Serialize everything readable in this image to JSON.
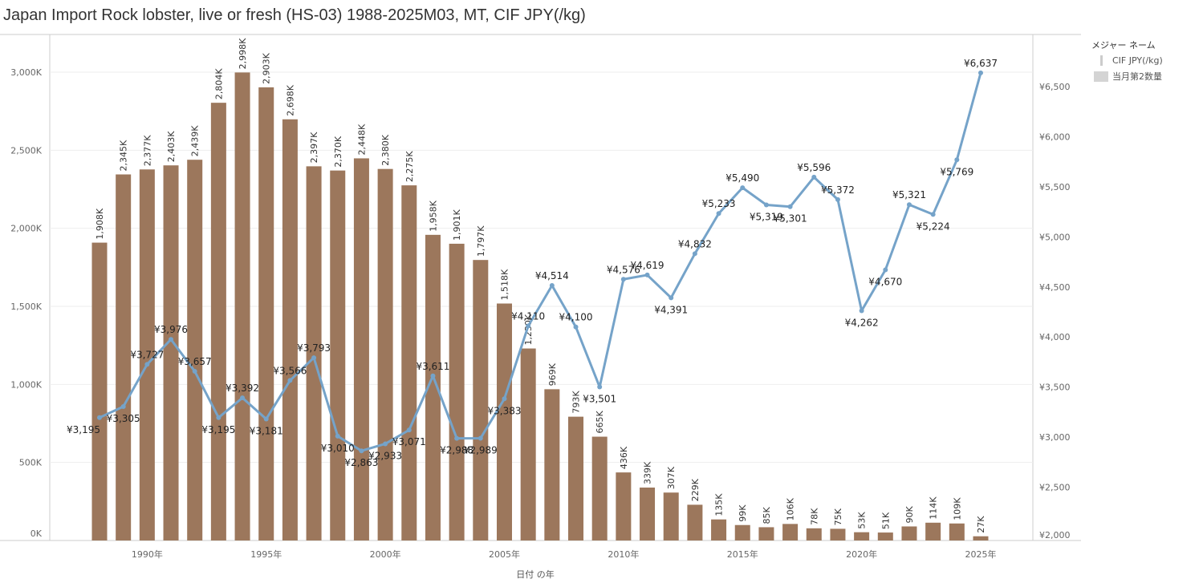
{
  "title": "Japan Import Rock lobster, live or fresh (HS-03) 1988-2025M03, MT, CIF JPY(/kg)",
  "legend": {
    "title": "メジャー ネーム",
    "items": [
      "CIF JPY(/kg)",
      "当月第2数量"
    ]
  },
  "colors": {
    "bar": "#9c775c",
    "line": "#75a3c9",
    "grid": "#eeeeee",
    "axis_text": "#666666"
  },
  "chart_data": {
    "type": "bar+line",
    "title": "Japan Import Rock lobster, live or fresh (HS-03) 1988-2025M03, MT, CIF JPY(/kg)",
    "xlabel": "日付 の年",
    "x": [
      1988,
      1989,
      1990,
      1991,
      1992,
      1993,
      1994,
      1995,
      1996,
      1997,
      1998,
      1999,
      2000,
      2001,
      2002,
      2003,
      2004,
      2005,
      2006,
      2007,
      2008,
      2009,
      2010,
      2011,
      2012,
      2013,
      2014,
      2015,
      2016,
      2017,
      2018,
      2019,
      2020,
      2021,
      2022,
      2023,
      2024,
      2025
    ],
    "x_ticks": [
      "1990年",
      "1995年",
      "2000年",
      "2005年",
      "2010年",
      "2015年",
      "2020年",
      "2025年"
    ],
    "x_tick_years": [
      1990,
      1995,
      2000,
      2005,
      2010,
      2015,
      2020,
      2025
    ],
    "series": [
      {
        "name": "当月第2数量",
        "type": "bar",
        "axis": "left",
        "values": [
          1908,
          2345,
          2377,
          2403,
          2439,
          2804,
          2998,
          2903,
          2698,
          2397,
          2370,
          2448,
          2380,
          2275,
          1958,
          1901,
          1797,
          1518,
          1230,
          969,
          793,
          665,
          436,
          339,
          307,
          229,
          135,
          99,
          85,
          106,
          78,
          75,
          53,
          51,
          90,
          114,
          109,
          27
        ],
        "labels": [
          "1,908K",
          "2,345K",
          "2,377K",
          "2,403K",
          "2,439K",
          "2,804K",
          "2,998K",
          "2,903K",
          "2,698K",
          "2,397K",
          "2,370K",
          "2,448K",
          "2,380K",
          "2,275K",
          "1,958K",
          "1,901K",
          "1,797K",
          "1,518K",
          "1,230K",
          "969K",
          "793K",
          "665K",
          "436K",
          "339K",
          "307K",
          "229K",
          "135K",
          "99K",
          "85K",
          "106K",
          "78K",
          "75K",
          "53K",
          "51K",
          "90K",
          "114K",
          "109K",
          "27K"
        ]
      },
      {
        "name": "CIF JPY(/kg)",
        "type": "line",
        "axis": "right",
        "values": [
          3195,
          3305,
          3727,
          3976,
          3657,
          3195,
          3392,
          3181,
          3566,
          3793,
          3010,
          2863,
          2933,
          3071,
          3611,
          2988,
          2989,
          3383,
          4110,
          4514,
          4100,
          3501,
          4576,
          4619,
          4391,
          4832,
          5233,
          5490,
          5319,
          5301,
          5596,
          5372,
          4262,
          4670,
          5321,
          5224,
          5769,
          6637
        ],
        "labels": [
          "¥3,195",
          "¥3,305",
          "¥3,727",
          "¥3,976",
          "¥3,657",
          "¥3,195",
          "¥3,392",
          "¥3,181",
          "¥3,566",
          "¥3,793",
          "¥3,010",
          "¥2,863",
          "¥2,933",
          "¥3,071",
          "¥3,611",
          "¥2,988",
          "¥2,989",
          "¥3,383",
          "¥4,110",
          "¥4,514",
          "¥4,100",
          "¥3,501",
          "¥4,576",
          "¥4,619",
          "¥4,391",
          "¥4,832",
          "¥5,233",
          "¥5,490",
          "¥5,319",
          "¥5,301",
          "¥5,596",
          "¥5,372",
          "¥4,262",
          "¥4,670",
          "¥5,321",
          "¥5,224",
          "¥5,769",
          "¥6,637"
        ]
      }
    ],
    "y_left": {
      "range": [
        0,
        3000
      ],
      "unit": "K",
      "ticks": [
        0,
        500,
        1000,
        1500,
        2000,
        2500,
        3000
      ],
      "tick_labels": [
        "0K",
        "500K",
        "1,000K",
        "1,500K",
        "2,000K",
        "2,500K",
        "3,000K"
      ]
    },
    "y_right": {
      "range": [
        2000,
        6500
      ],
      "ticks": [
        2000,
        2500,
        3000,
        3500,
        4000,
        4500,
        5000,
        5500,
        6000,
        6500
      ],
      "tick_labels": [
        "¥2,000",
        "¥2,500",
        "¥3,000",
        "¥3,500",
        "¥4,000",
        "¥4,500",
        "¥5,000",
        "¥5,500",
        "¥6,000",
        "¥6,500"
      ]
    },
    "grid": true,
    "legend_position": "right"
  }
}
